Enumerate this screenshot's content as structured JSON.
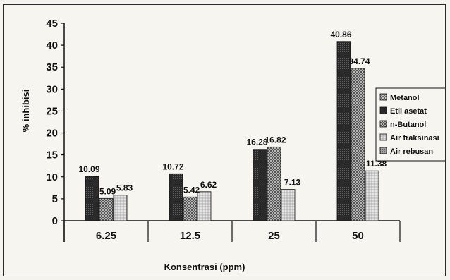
{
  "chart_data": {
    "type": "bar",
    "title": "",
    "xlabel": "Konsentrasi (ppm)",
    "ylabel": "% inhibisi",
    "ylim": [
      0,
      45
    ],
    "yticks": [
      "0",
      "5",
      "10",
      "15",
      "20",
      "25",
      "30",
      "35",
      "40",
      "45"
    ],
    "categories": [
      "6.25",
      "12.5",
      "25",
      "50"
    ],
    "series": [
      {
        "name": "Metanol",
        "values": [
          null,
          null,
          null,
          null
        ],
        "labels": [
          "",
          "",
          "",
          ""
        ],
        "color": "#bdbdbd",
        "pattern": "cross"
      },
      {
        "name": "Etil asetat",
        "values": [
          10.09,
          10.72,
          16.28,
          40.86
        ],
        "labels": [
          "10.09",
          "10.72",
          "16.28",
          "40.86"
        ],
        "color": "#303030",
        "pattern": "dark"
      },
      {
        "name": "n-Butanol",
        "values": [
          5.09,
          5.42,
          16.82,
          34.74
        ],
        "labels": [
          "5.09",
          "5.42",
          "16.82",
          "34.74"
        ],
        "color": "#8a8a8a",
        "pattern": "check"
      },
      {
        "name": "Air fraksinasi",
        "values": [
          5.83,
          6.62,
          7.13,
          11.38
        ],
        "labels": [
          "5.83",
          "6.62",
          "7.13",
          "11.38"
        ],
        "color": "#d0d0d0",
        "pattern": "light"
      },
      {
        "name": "Air rebusan",
        "values": [
          null,
          null,
          null,
          null
        ],
        "labels": [
          "",
          "",
          "",
          ""
        ],
        "color": "#9a9a9a",
        "pattern": "grey"
      }
    ],
    "grid": false,
    "legend_position": "right"
  }
}
